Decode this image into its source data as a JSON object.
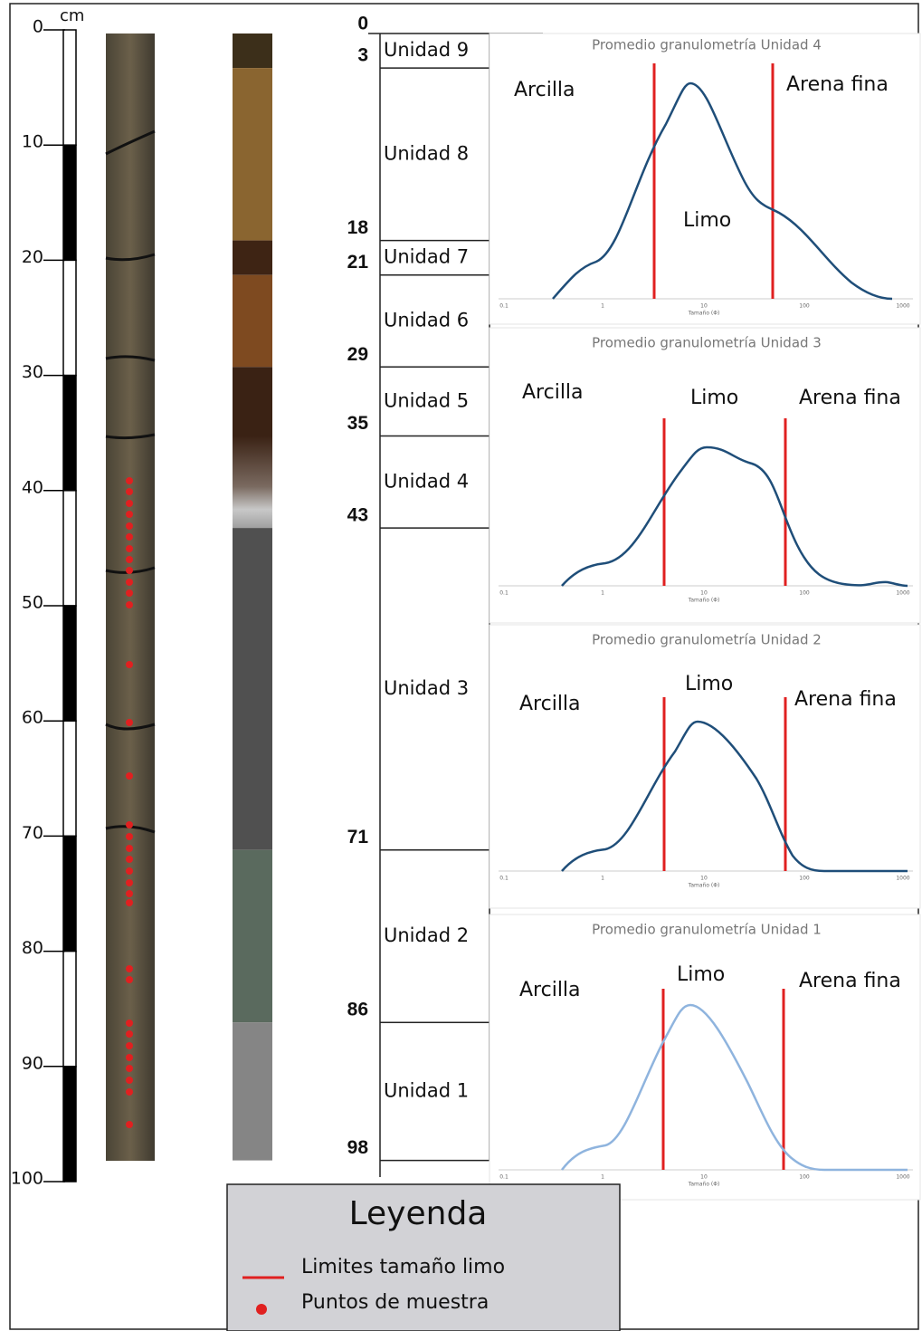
{
  "scale": {
    "unit": "cm",
    "ticks": [
      0,
      10,
      20,
      30,
      40,
      50,
      60,
      70,
      80,
      90,
      100
    ]
  },
  "boundaries": [
    0,
    3,
    18,
    21,
    29,
    35,
    43,
    71,
    86,
    98
  ],
  "units": [
    "Unidad 9",
    "Unidad 8",
    "Unidad 7",
    "Unidad 6",
    "Unidad 5",
    "Unidad 4",
    "Unidad 3",
    "Unidad 2",
    "Unidad 1"
  ],
  "graphs": [
    {
      "title": "Promedio granulometría Unidad 4",
      "labels": [
        "Arcilla",
        "Limo",
        "Arena fina"
      ],
      "x_ticks": [
        "0.1",
        "1",
        "10",
        "100",
        "1000"
      ],
      "x_label": "Tamaño (Φ)"
    },
    {
      "title": "Promedio granulometría Unidad 3",
      "labels": [
        "Arcilla",
        "Limo",
        "Arena fina"
      ],
      "x_ticks": [
        "0.1",
        "1",
        "10",
        "100",
        "1000"
      ],
      "x_label": "Tamaño (Φ)"
    },
    {
      "title": "Promedio granulometría Unidad 2",
      "labels": [
        "Arcilla",
        "Limo",
        "Arena fina"
      ],
      "x_ticks": [
        "0.1",
        "1",
        "10",
        "100",
        "1000"
      ],
      "x_label": "Tamaño (Φ)"
    },
    {
      "title": "Promedio granulometría Unidad 1",
      "labels": [
        "Arcilla",
        "Limo",
        "Arena fina"
      ],
      "x_ticks": [
        "0.1",
        "1",
        "10",
        "100",
        "1000"
      ],
      "x_label": "Tamaño (Φ)"
    }
  ],
  "legend": {
    "title": "Leyenda",
    "items": [
      "Limites tamaño limo",
      "Puntos de muestra"
    ]
  }
}
